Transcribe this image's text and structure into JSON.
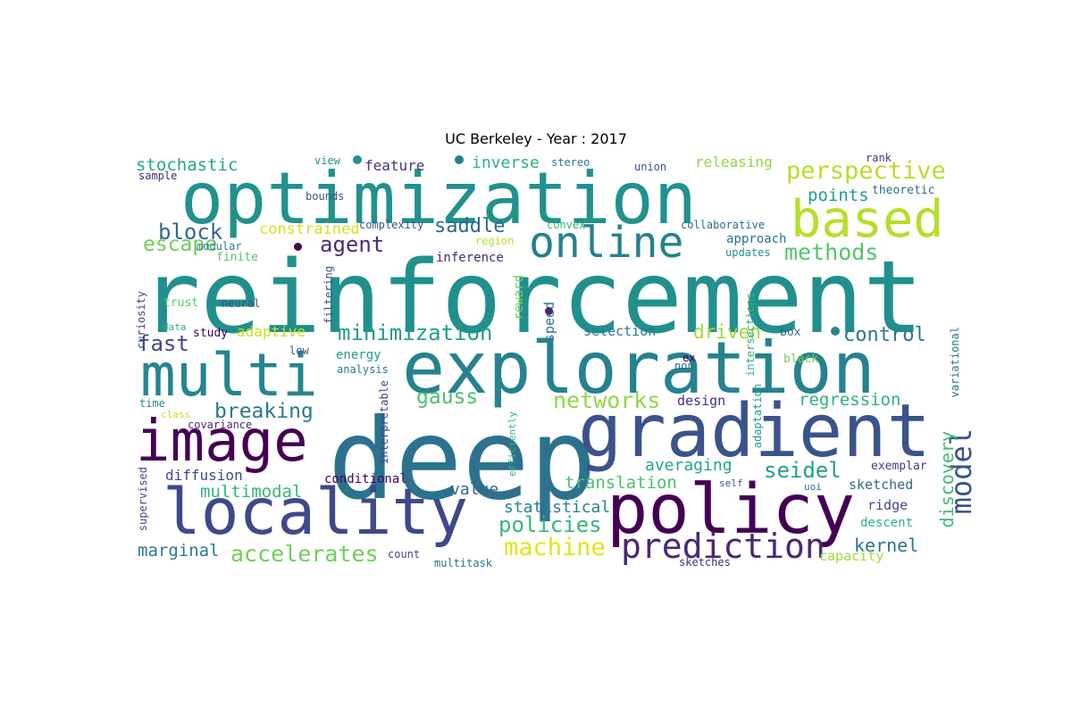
{
  "title": "UC Berkeley - Year : 2017",
  "words": [
    {
      "text": "reinforcement",
      "color": "#21908d"
    },
    {
      "text": "deep",
      "color": "#2c728e"
    },
    {
      "text": "optimization",
      "color": "#21918c"
    },
    {
      "text": "exploration",
      "color": "#26828e"
    },
    {
      "text": "gradient",
      "color": "#3b528b"
    },
    {
      "text": "policy",
      "color": "#440154"
    },
    {
      "text": "multi",
      "color": "#25858e"
    },
    {
      "text": "locality",
      "color": "#3e4989"
    },
    {
      "text": "image",
      "color": "#440154"
    },
    {
      "text": "based",
      "color": "#b5de2b"
    },
    {
      "text": "online",
      "color": "#27808e"
    },
    {
      "text": "prediction",
      "color": "#482878"
    },
    {
      "text": "perspective",
      "color": "#b5de2b"
    },
    {
      "text": "model",
      "color": "#3b528b"
    },
    {
      "text": "networks",
      "color": "#90d743"
    },
    {
      "text": "machine",
      "color": "#e2e418"
    },
    {
      "text": "accelerates",
      "color": "#6ece58"
    },
    {
      "text": "minimization",
      "color": "#1f9e89"
    },
    {
      "text": "policies",
      "color": "#35b779"
    },
    {
      "text": "methods",
      "color": "#52c569"
    },
    {
      "text": "escape",
      "color": "#6ece58"
    },
    {
      "text": "block",
      "color": "#31688e"
    },
    {
      "text": "agent",
      "color": "#472d7b"
    },
    {
      "text": "saddle",
      "color": "#31688e"
    },
    {
      "text": "gauss",
      "color": "#4ac16d"
    },
    {
      "text": "breaking",
      "color": "#2a788e"
    },
    {
      "text": "seidel",
      "color": "#1fa187"
    },
    {
      "text": "fast",
      "color": "#3e4989"
    },
    {
      "text": "control",
      "color": "#2a788e"
    },
    {
      "text": "driven",
      "color": "#a0da39"
    },
    {
      "text": "regression",
      "color": "#2db27d"
    },
    {
      "text": "discovery",
      "color": "#3dbc74"
    },
    {
      "text": "kernel",
      "color": "#2c728e"
    },
    {
      "text": "marginal",
      "color": "#2a788e"
    },
    {
      "text": "multimodal",
      "color": "#35b779"
    },
    {
      "text": "translation",
      "color": "#4ac16d"
    },
    {
      "text": "averaging",
      "color": "#22a884"
    },
    {
      "text": "stochastic",
      "color": "#22a884"
    },
    {
      "text": "points",
      "color": "#1f9e89"
    },
    {
      "text": "inverse",
      "color": "#2db27d"
    },
    {
      "text": "constrained",
      "color": "#d8e219"
    },
    {
      "text": "value",
      "color": "#31688e"
    },
    {
      "text": "statistical",
      "color": "#26828e"
    },
    {
      "text": "diffusion",
      "color": "#3e4989"
    },
    {
      "text": "feature",
      "color": "#46327e"
    },
    {
      "text": "releasing",
      "color": "#90d743"
    },
    {
      "text": "adaptive",
      "color": "#c8e020"
    },
    {
      "text": "design",
      "color": "#472d7b"
    },
    {
      "text": "selection",
      "color": "#2a788e"
    },
    {
      "text": "sketched",
      "color": "#31688e"
    },
    {
      "text": "conditional",
      "color": "#440154"
    },
    {
      "text": "energy",
      "color": "#1f9e89"
    },
    {
      "text": "inference",
      "color": "#482878"
    },
    {
      "text": "approach",
      "color": "#2c728e"
    },
    {
      "text": "capacity",
      "color": "#a0da39"
    },
    {
      "text": "ridge",
      "color": "#3e4989"
    },
    {
      "text": "descent",
      "color": "#2db27d"
    },
    {
      "text": "reward",
      "color": "#6ece58"
    },
    {
      "text": "speed",
      "color": "#2c728e"
    },
    {
      "text": "theoretic",
      "color": "#31688e"
    },
    {
      "text": "exemplar",
      "color": "#433e85"
    },
    {
      "text": "covariance",
      "color": "#482878"
    },
    {
      "text": "finite",
      "color": "#52c569"
    },
    {
      "text": "trust",
      "color": "#5ec962"
    },
    {
      "text": "study",
      "color": "#440154"
    },
    {
      "text": "black",
      "color": "#6ece58"
    },
    {
      "text": "box",
      "color": "#31688e"
    },
    {
      "text": "modular",
      "color": "#2a788e"
    },
    {
      "text": "region",
      "color": "#b5de2b"
    },
    {
      "text": "count",
      "color": "#3e4989"
    },
    {
      "text": "multitask",
      "color": "#2c728e"
    },
    {
      "text": "sketches",
      "color": "#482878"
    },
    {
      "text": "updates",
      "color": "#21918c"
    },
    {
      "text": "collaborative",
      "color": "#31688e"
    },
    {
      "text": "complexity",
      "color": "#3b528b"
    },
    {
      "text": "bounds",
      "color": "#3b528b"
    },
    {
      "text": "convex",
      "color": "#35b779"
    },
    {
      "text": "union",
      "color": "#3b528b"
    },
    {
      "text": "stereo",
      "color": "#2a788e"
    },
    {
      "text": "view",
      "color": "#21918c"
    },
    {
      "text": "sample",
      "color": "#482878"
    },
    {
      "text": "rank",
      "color": "#46327e"
    },
    {
      "text": "neural",
      "color": "#3b528b"
    },
    {
      "text": "low",
      "color": "#3e4989"
    },
    {
      "text": "analysis",
      "color": "#2a788e"
    },
    {
      "text": "data",
      "color": "#2db27d"
    },
    {
      "text": "time",
      "color": "#26828e"
    },
    {
      "text": "class",
      "color": "#bddf26"
    },
    {
      "text": "ex",
      "color": "#440154"
    },
    {
      "text": "non",
      "color": "#31688e"
    },
    {
      "text": "self",
      "color": "#3b528b"
    },
    {
      "text": "uoi",
      "color": "#2c728e"
    },
    {
      "text": "curiosity",
      "color": "#3e4989"
    },
    {
      "text": "filtering",
      "color": "#3b528b"
    },
    {
      "text": "supervised",
      "color": "#3e4989"
    },
    {
      "text": "interpretable",
      "color": "#433e85"
    },
    {
      "text": "efficiently",
      "color": "#2db27d"
    },
    {
      "text": "intersections",
      "color": "#2db27d"
    },
    {
      "text": "adaptation",
      "color": "#1f9e89"
    },
    {
      "text": "variational",
      "color": "#2a788e"
    }
  ]
}
